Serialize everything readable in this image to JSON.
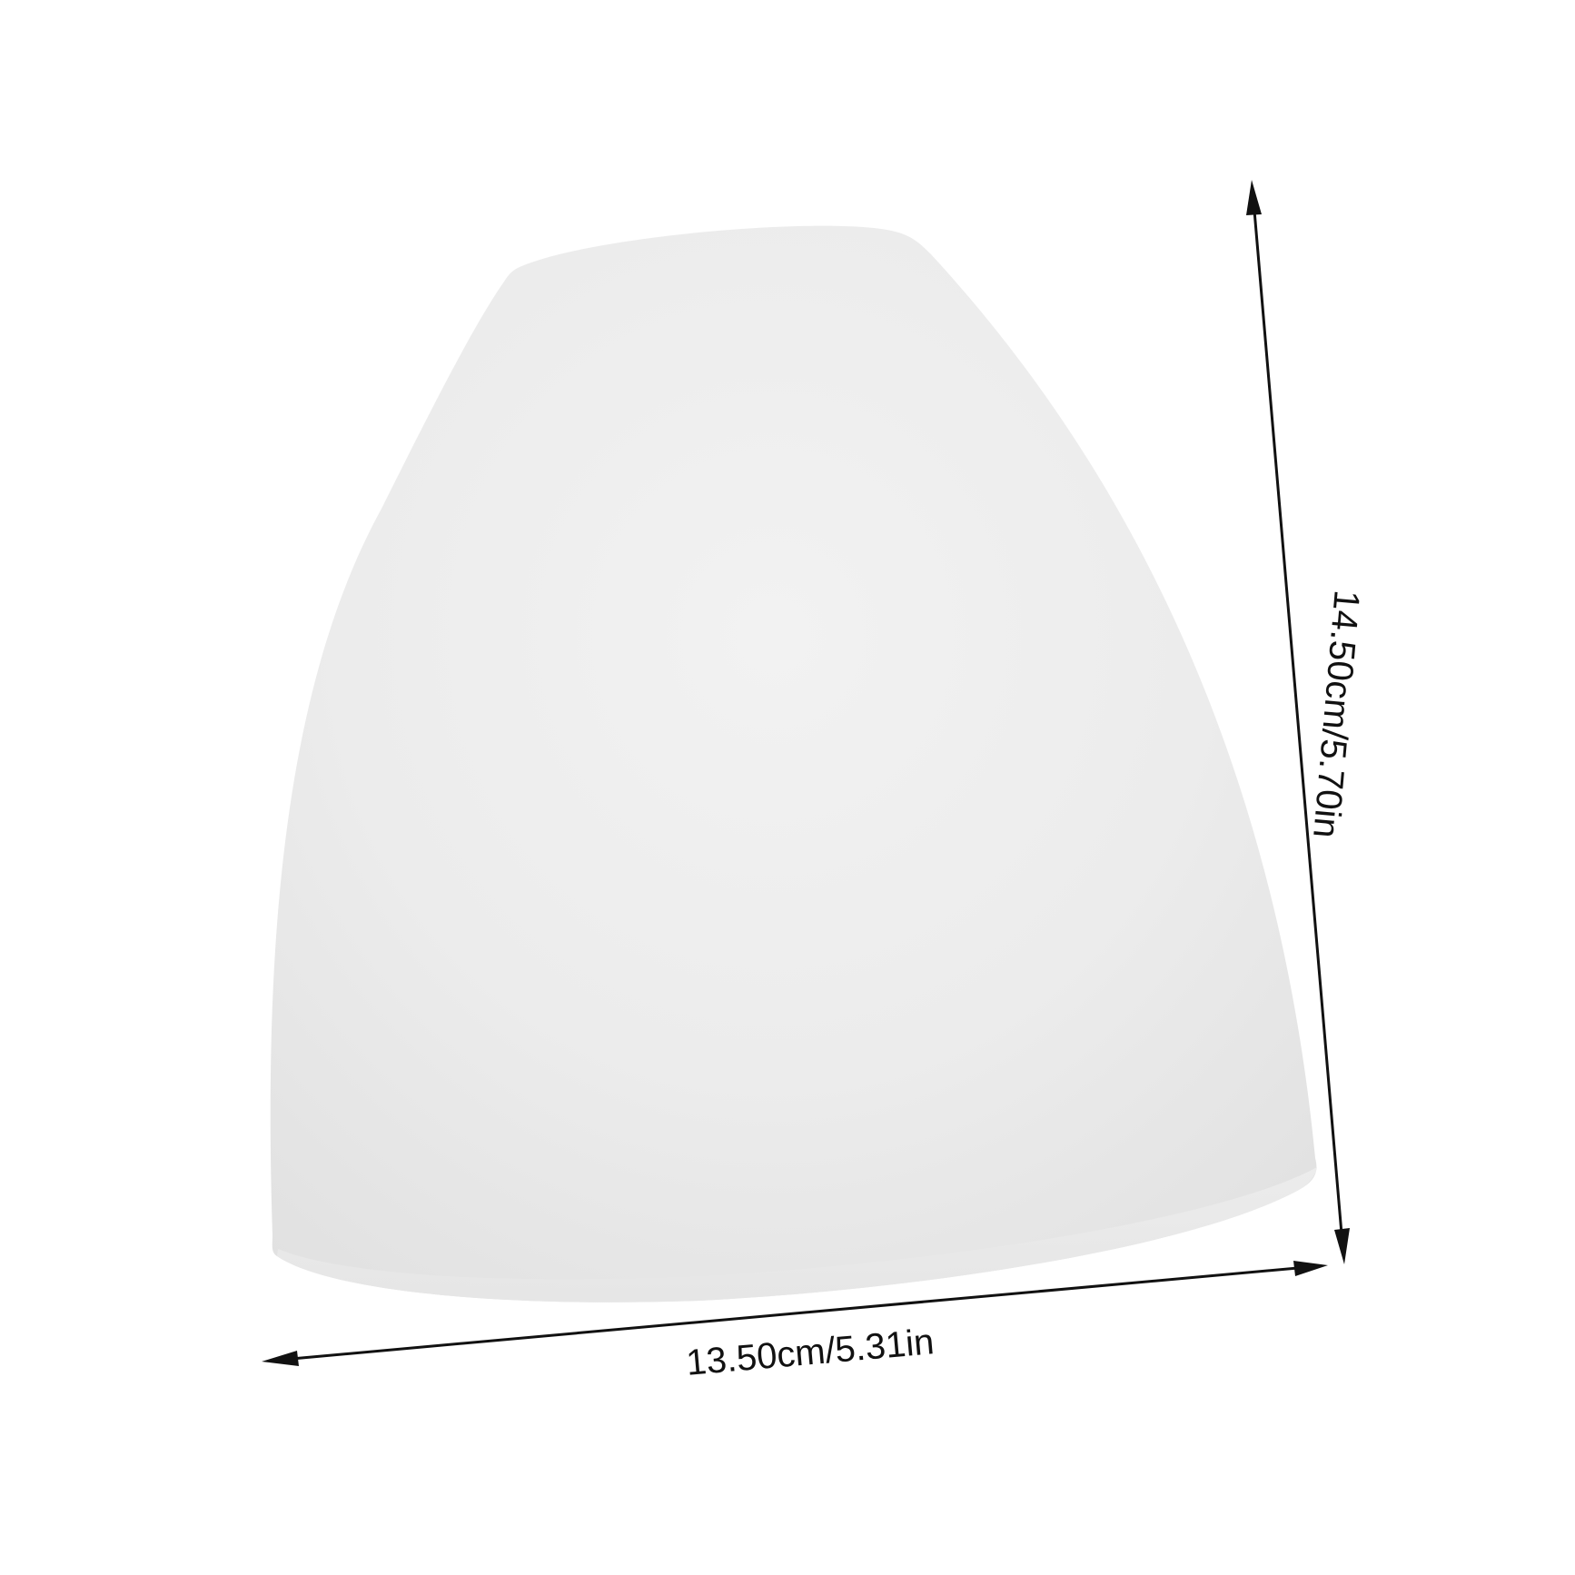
{
  "dimensions": {
    "width_label": "13.50cm/5.31in",
    "height_label": "14.50cm/5.70in"
  },
  "colors": {
    "background": "#ffffff",
    "shade_light": "#f3f3f3",
    "shade_mid": "#ebebeb",
    "shade_dark": "#e2e2e2",
    "rim": "#ececec",
    "dimension_line": "#111111"
  }
}
